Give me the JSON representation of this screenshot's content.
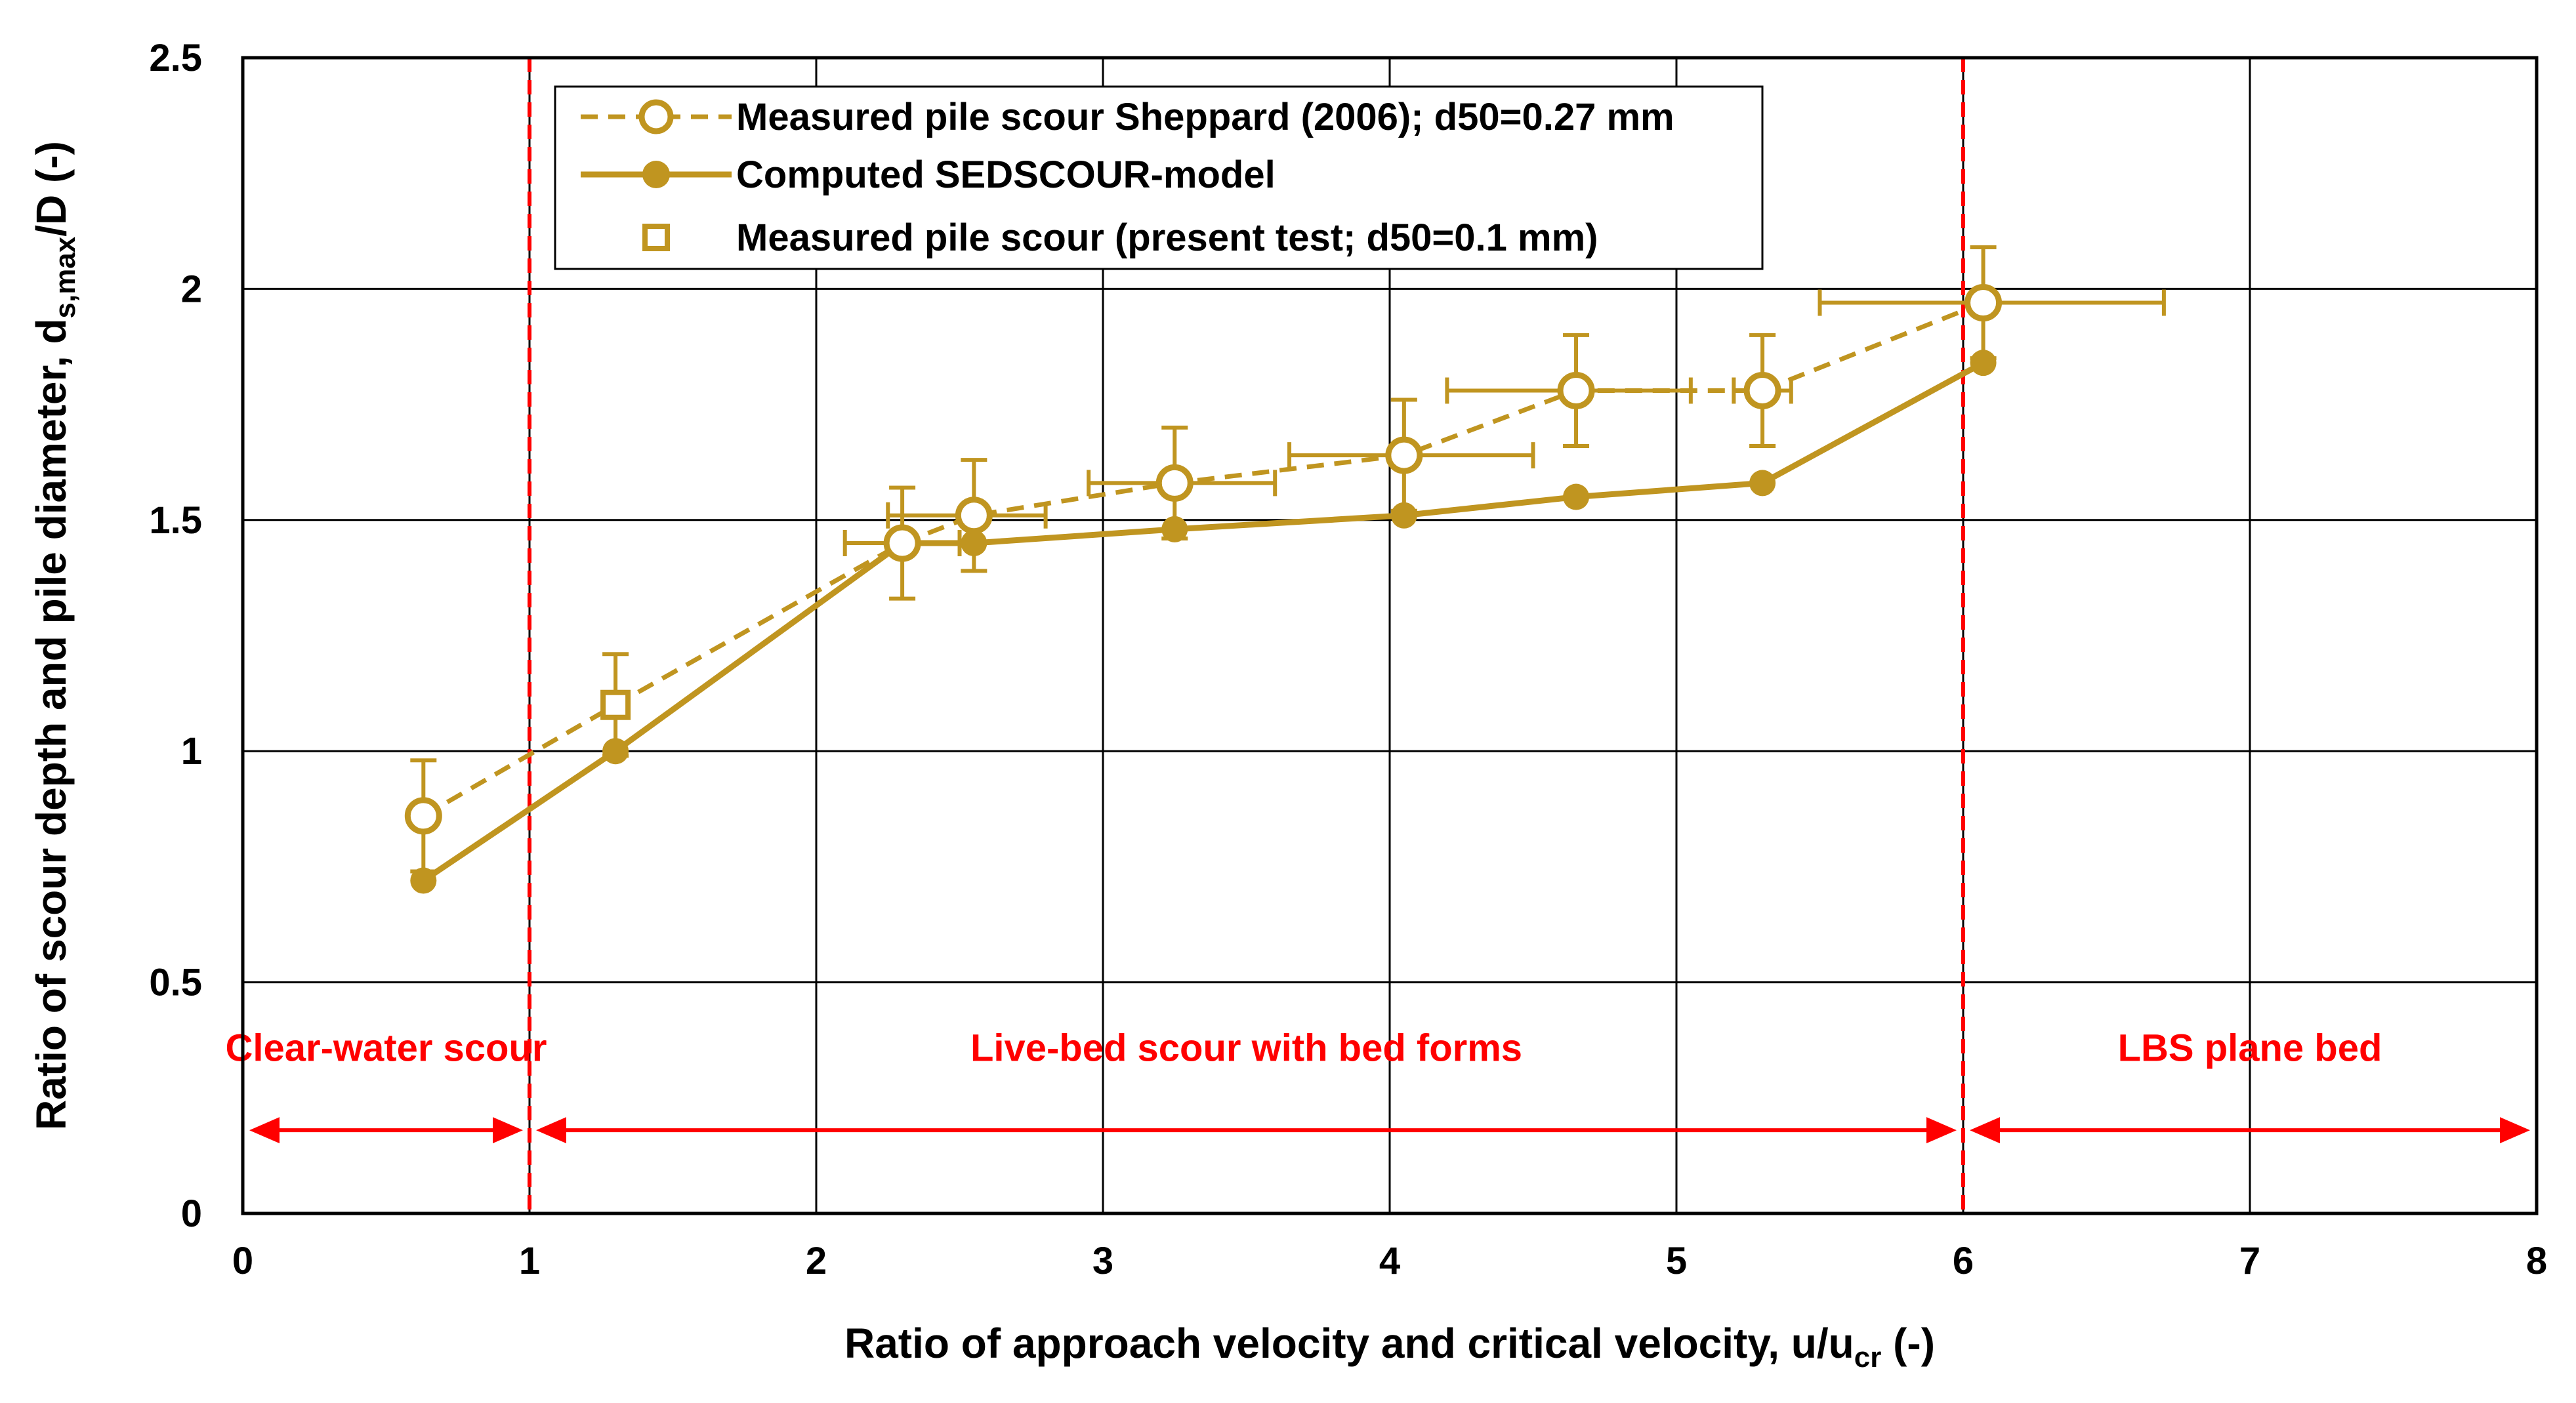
{
  "chart_data": {
    "type": "line",
    "xlabel": {
      "text": "Ratio of approach velocity and critical velocity, u/u",
      "sub": "cr",
      "tail": " (-)"
    },
    "ylabel": {
      "text": "Ratio of  scour depth and pile diameter, d",
      "sub": "s,max",
      "tail": "/D (-)"
    },
    "xlim": [
      0,
      8
    ],
    "ylim": [
      0,
      2.5
    ],
    "xticks": [
      0,
      1,
      2,
      3,
      4,
      5,
      6,
      7,
      8
    ],
    "yticks": [
      0,
      0.5,
      1,
      1.5,
      2,
      2.5
    ],
    "xtick_labels": [
      "0",
      "1",
      "2",
      "3",
      "4",
      "5",
      "6",
      "7",
      "8"
    ],
    "ytick_labels": [
      "0",
      "0.5",
      "1",
      "1.5",
      "2",
      "2.5"
    ],
    "grid": true,
    "legend_position": "top-left",
    "colors": {
      "series": "#C09520",
      "regime": "#FF0000",
      "grid": "#000000"
    },
    "series": [
      {
        "name": "Measured pile scour Sheppard (2006); d50=0.27 mm",
        "style": "dashed-open-circle",
        "x": [
          0.63,
          1.3,
          2.3,
          2.55,
          3.25,
          4.05,
          4.65,
          5.3,
          6.07
        ],
        "y": [
          0.86,
          1.1,
          1.45,
          1.51,
          1.58,
          1.64,
          1.78,
          1.78,
          1.97
        ],
        "y_err": [
          0.12,
          null,
          0.12,
          0.12,
          0.12,
          0.12,
          0.12,
          0.12,
          0.12
        ],
        "x_err": [
          null,
          null,
          [
            2.1,
            2.5
          ],
          [
            2.25,
            2.8
          ],
          [
            2.95,
            3.6
          ],
          [
            3.65,
            4.5
          ],
          [
            4.2,
            5.05
          ],
          [
            5.4,
            5.2
          ],
          [
            5.5,
            6.7
          ]
        ]
      },
      {
        "name": "Computed SEDSCOUR-model",
        "style": "solid-filled-circle",
        "x": [
          0.63,
          1.3,
          2.3,
          2.55,
          3.25,
          4.05,
          4.65,
          5.3,
          6.07
        ],
        "y": [
          0.72,
          1.0,
          1.45,
          1.45,
          1.48,
          1.51,
          1.55,
          1.58,
          1.84
        ]
      },
      {
        "name": "Measured pile scour (present test; d50=0.1 mm)",
        "style": "open-square",
        "x": [
          1.3
        ],
        "y": [
          1.1
        ],
        "y_err": [
          0.11
        ]
      }
    ],
    "regime_boundaries": [
      1,
      6
    ],
    "regimes": [
      {
        "label": "Clear-water scour",
        "x_range": [
          0,
          1
        ]
      },
      {
        "label": "Live-bed scour with bed forms",
        "x_range": [
          1,
          6
        ]
      },
      {
        "label": "LBS plane bed",
        "x_range": [
          6,
          8
        ]
      }
    ]
  }
}
